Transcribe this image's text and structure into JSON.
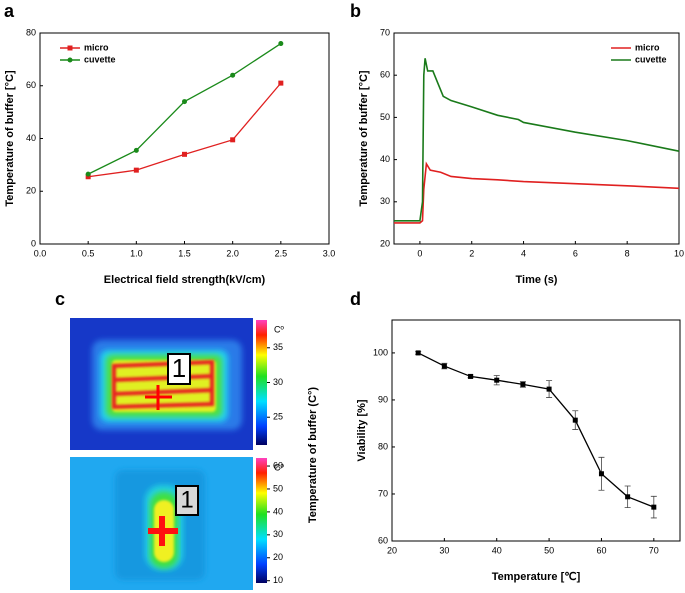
{
  "chart_data": [
    {
      "panel": "a",
      "type": "line",
      "xlabel": "Electrical field strength(kV/cm)",
      "ylabel": "Temperature of buffer  [°C]",
      "xlim": [
        0,
        3
      ],
      "xticks": [
        {
          "value": 0,
          "label": "0.0"
        },
        0.5,
        {
          "value": 1,
          "label": "1.0"
        },
        1.5,
        {
          "value": 2,
          "label": "2.0"
        },
        2.5,
        {
          "value": 3,
          "label": "3.0"
        }
      ],
      "ylim": [
        0,
        80
      ],
      "yticks": [
        0,
        20,
        40,
        60,
        80
      ],
      "legend": "upper left",
      "series": [
        {
          "name": "micro",
          "color": "#e02020",
          "marker": "square",
          "x": [
            0.5,
            1,
            1.5,
            2,
            2.5
          ],
          "values": [
            25.5,
            28,
            34,
            39.5,
            61
          ]
        },
        {
          "name": "cuvette",
          "color": "#1a8a1a",
          "marker": "circle",
          "x": [
            0.5,
            1,
            1.5,
            2,
            2.5
          ],
          "values": [
            26.5,
            35.5,
            54,
            64,
            76
          ]
        }
      ]
    },
    {
      "panel": "b",
      "type": "line",
      "xlabel": "Time (s)",
      "ylabel": "Temperature of buffer  [°C]",
      "xlim": [
        -1,
        10
      ],
      "xticks": [
        0,
        2,
        4,
        6,
        8,
        10
      ],
      "ylim": [
        20,
        70
      ],
      "yticks": [
        20,
        30,
        40,
        50,
        60,
        70
      ],
      "legend": "upper right",
      "series": [
        {
          "name": "micro",
          "color": "#e02020",
          "x": [
            -1,
            0,
            0.1,
            0.15,
            0.25,
            0.4,
            0.8,
            1.2,
            2,
            3,
            4,
            6,
            8,
            10
          ],
          "values": [
            25,
            25,
            25.5,
            33,
            39,
            37.5,
            37,
            36,
            35.5,
            35.2,
            34.8,
            34.3,
            33.8,
            33.2
          ]
        },
        {
          "name": "cuvette",
          "color": "#1a7a1a",
          "x": [
            -1,
            0,
            0.1,
            0.15,
            0.2,
            0.3,
            0.5,
            0.7,
            0.9,
            1.2,
            2,
            3,
            3.8,
            4,
            6,
            8,
            10
          ],
          "values": [
            25.5,
            25.5,
            30,
            60,
            64,
            61,
            61,
            58,
            55,
            54,
            52.5,
            50.5,
            49.5,
            48.8,
            46.5,
            44.5,
            42
          ]
        }
      ]
    },
    {
      "panel": "c",
      "type": "thermal-image",
      "ylabel": "Temperature of buffer  (C°)",
      "box_labels": [
        "1",
        "1"
      ],
      "colorbars": [
        {
          "unit": "Cº",
          "lim": [
            21,
            39
          ],
          "ticks": [
            25,
            30,
            35
          ]
        },
        {
          "unit": "Cº",
          "lim": [
            9,
            63.5
          ],
          "ticks": [
            10,
            20,
            30,
            40,
            50,
            60
          ]
        }
      ]
    },
    {
      "panel": "d",
      "type": "line",
      "xlabel": "Temperature [℃]",
      "ylabel": "Viability [%]",
      "xlim": [
        20,
        75
      ],
      "xticks": [
        20,
        30,
        40,
        50,
        60,
        70
      ],
      "ylim": [
        60,
        107
      ],
      "yticks": [
        60,
        70,
        80,
        90,
        100
      ],
      "series": [
        {
          "color": "#000000",
          "marker": "square",
          "x": [
            25,
            30,
            35,
            40,
            45,
            50,
            55,
            60,
            65,
            70
          ],
          "values": [
            100,
            97.2,
            95,
            94.2,
            93.3,
            92.3,
            85.7,
            74.3,
            69.4,
            67.2
          ],
          "errors": [
            0.3,
            0.6,
            0.3,
            1.0,
            0.6,
            1.8,
            2,
            3.5,
            2.3,
            2.3
          ]
        }
      ]
    }
  ]
}
